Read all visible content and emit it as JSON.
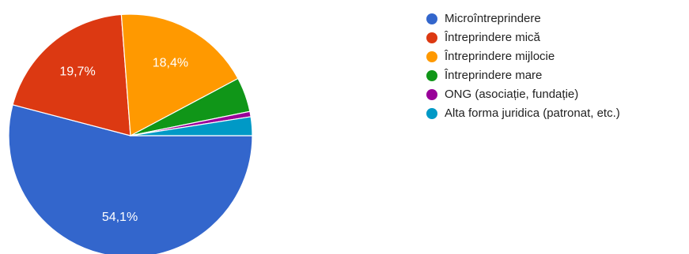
{
  "chart_data": {
    "type": "pie",
    "legend_position": "right",
    "start_direction": "clockwise from 3 o'clock",
    "slices": [
      {
        "label": "Microîntreprindere",
        "value": 54.1,
        "color": "#3366cc",
        "display": "54,1%"
      },
      {
        "label": "Întreprindere mică",
        "value": 19.7,
        "color": "#dc3912",
        "display": "19,7%"
      },
      {
        "label": "Întreprindere mijlocie",
        "value": 18.4,
        "color": "#ff9900",
        "display": "18,4%"
      },
      {
        "label": "Întreprindere mare",
        "value": 4.6,
        "color": "#109618",
        "display": ""
      },
      {
        "label": "ONG (asociație, fundație)",
        "value": 0.7,
        "color": "#990099",
        "display": ""
      },
      {
        "label": "Alta forma juridica (patronat, etc.)",
        "value": 2.5,
        "color": "#0099c6",
        "display": ""
      }
    ]
  }
}
